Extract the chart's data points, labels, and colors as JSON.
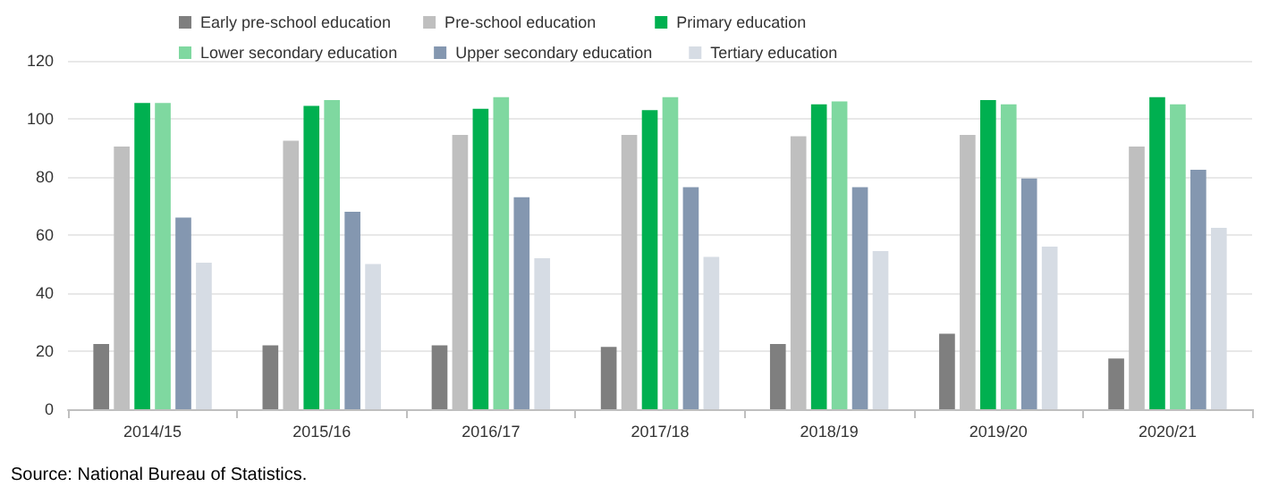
{
  "chart_data": {
    "type": "bar",
    "categories": [
      "2014/15",
      "2015/16",
      "2016/17",
      "2017/18",
      "2018/19",
      "2019/20",
      "2020/21"
    ],
    "series": [
      {
        "name": "Early pre-school education",
        "color": "#7f7f7f",
        "values": [
          22.5,
          22,
          22,
          21.5,
          22.5,
          26,
          17.5
        ]
      },
      {
        "name": "Pre-school education",
        "color": "#bfbfbf",
        "values": [
          90.5,
          92.5,
          94.5,
          94.5,
          94,
          94.5,
          90.5
        ]
      },
      {
        "name": "Primary education",
        "color": "#00b050",
        "values": [
          105.5,
          104.5,
          103.5,
          103,
          105,
          106.5,
          107.5
        ]
      },
      {
        "name": "Lower secondary education",
        "color": "#7fd8a0",
        "values": [
          105.5,
          106.5,
          107.5,
          107.5,
          106,
          105,
          105
        ]
      },
      {
        "name": "Upper secondary education",
        "color": "#8497b0",
        "values": [
          66,
          68,
          73,
          76.5,
          76.5,
          79.5,
          82.5
        ]
      },
      {
        "name": "Tertiary education",
        "color": "#d6dce4",
        "values": [
          50.5,
          50,
          52,
          52.5,
          54.5,
          56,
          62.5
        ]
      }
    ],
    "ylim": [
      0,
      120
    ],
    "yticks": [
      0,
      20,
      40,
      60,
      80,
      100,
      120
    ],
    "grid": "y",
    "legend": "top",
    "annotations": [
      "Source: National Bureau of Statistics."
    ]
  }
}
